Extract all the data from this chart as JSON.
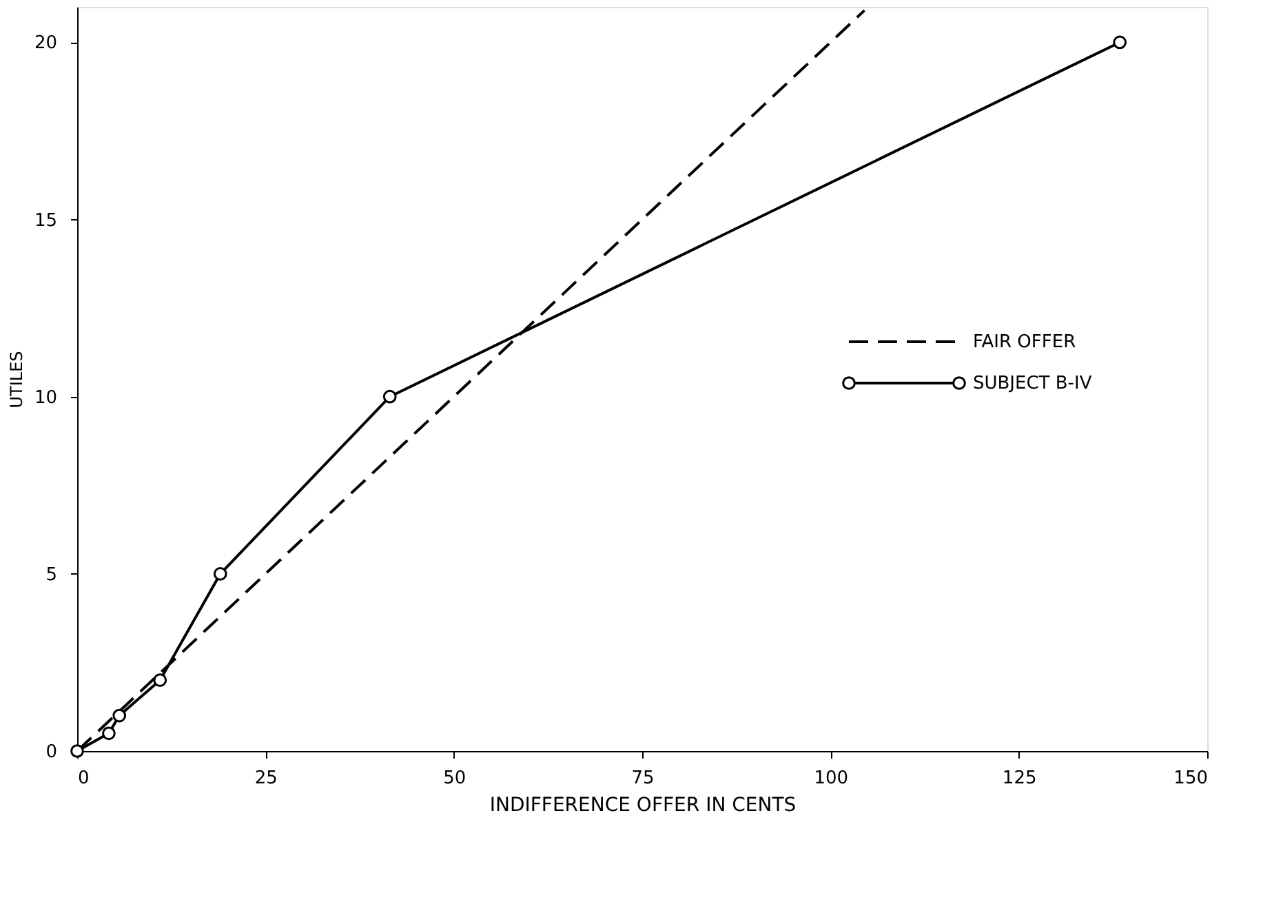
{
  "chart_data": {
    "type": "line",
    "xlabel": "INDIFFERENCE OFFER IN CENTS",
    "ylabel": "UTILES",
    "xlim": [
      0,
      150
    ],
    "xticks": [
      0,
      25,
      50,
      75,
      100,
      125,
      150
    ],
    "ylim": [
      0,
      21
    ],
    "yticks": [
      0,
      5,
      10,
      15,
      20
    ],
    "grid": false,
    "legend": "right",
    "series": [
      {
        "name": "FAIR OFFER",
        "color": "#000000",
        "line_style": "dashed",
        "x": [
          0,
          104.5
        ],
        "values": [
          0,
          20.9
        ]
      },
      {
        "name": "SUBJECT B-IV",
        "color": "#000000",
        "line_style": "solid",
        "marker": "circle",
        "x": [
          0,
          4.2,
          5.6,
          11,
          19,
          41.5,
          138.4
        ],
        "values": [
          0,
          0.5,
          1,
          2,
          5,
          10,
          20
        ]
      }
    ]
  }
}
